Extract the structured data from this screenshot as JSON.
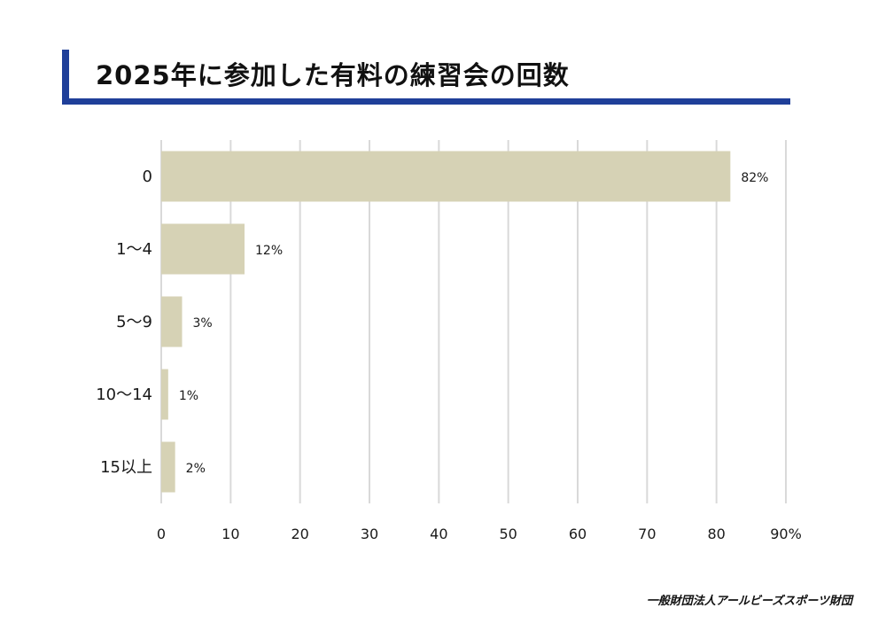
{
  "title": "2025年に参加した有料の練習会の回数",
  "footer": "一般財団法人アールビーズスポーツ財団",
  "colors": {
    "accent": "#1f3f99",
    "bar": "#d6d2b5",
    "grid": "#d9d9d9"
  },
  "chart_data": {
    "type": "bar",
    "orientation": "horizontal",
    "title": "2025年に参加した有料の練習会の回数",
    "categories": [
      "0",
      "1〜4",
      "5〜9",
      "10〜14",
      "15以上"
    ],
    "values": [
      82,
      12,
      3,
      1,
      2
    ],
    "value_labels": [
      "82%",
      "12%",
      "3%",
      "1%",
      "2%"
    ],
    "xlim": [
      0,
      90
    ],
    "x_ticks": [
      0,
      10,
      20,
      30,
      40,
      50,
      60,
      70,
      80,
      90
    ],
    "x_tick_labels": [
      "0",
      "10",
      "20",
      "30",
      "40",
      "50",
      "60",
      "70",
      "80",
      "90%"
    ],
    "grid": true,
    "xlabel": "",
    "ylabel": ""
  }
}
